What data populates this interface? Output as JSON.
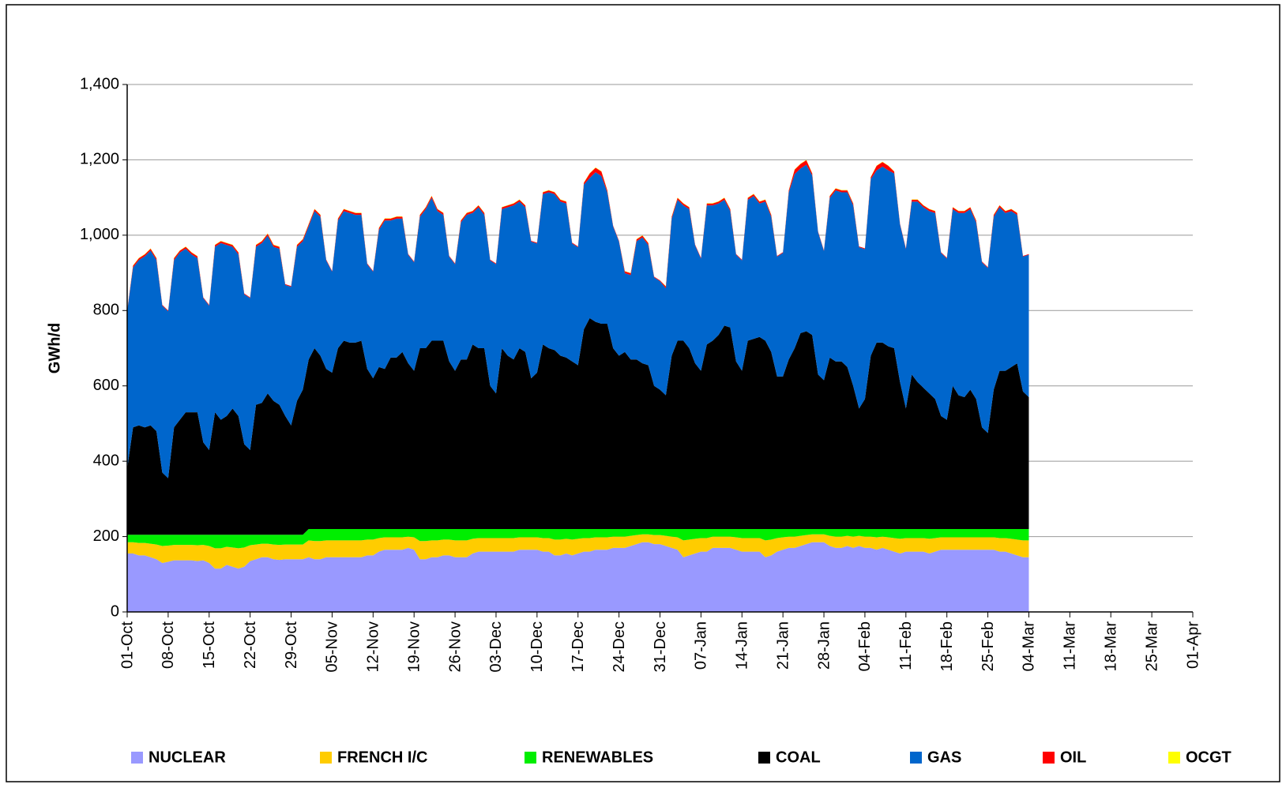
{
  "chart_data": {
    "type": "area",
    "stacked": true,
    "y_label": "GWh/d",
    "grid": true,
    "legend": "bottom",
    "xlim": [
      0,
      182
    ],
    "xticks": [
      {
        "value": 0,
        "label": "01-Oct"
      },
      {
        "value": 7,
        "label": "08-Oct"
      },
      {
        "value": 14,
        "label": "15-Oct"
      },
      {
        "value": 21,
        "label": "22-Oct"
      },
      {
        "value": 28,
        "label": "29-Oct"
      },
      {
        "value": 35,
        "label": "05-Nov"
      },
      {
        "value": 42,
        "label": "12-Nov"
      },
      {
        "value": 49,
        "label": "19-Nov"
      },
      {
        "value": 56,
        "label": "26-Nov"
      },
      {
        "value": 63,
        "label": "03-Dec"
      },
      {
        "value": 70,
        "label": "10-Dec"
      },
      {
        "value": 77,
        "label": "17-Dec"
      },
      {
        "value": 84,
        "label": "24-Dec"
      },
      {
        "value": 91,
        "label": "31-Dec"
      },
      {
        "value": 98,
        "label": "07-Jan"
      },
      {
        "value": 105,
        "label": "14-Jan"
      },
      {
        "value": 112,
        "label": "21-Jan"
      },
      {
        "value": 119,
        "label": "28-Jan"
      },
      {
        "value": 126,
        "label": "04-Feb"
      },
      {
        "value": 133,
        "label": "11-Feb"
      },
      {
        "value": 140,
        "label": "18-Feb"
      },
      {
        "value": 147,
        "label": "25-Feb"
      },
      {
        "value": 154,
        "label": "04-Mar"
      },
      {
        "value": 161,
        "label": "11-Mar"
      },
      {
        "value": 168,
        "label": "18-Mar"
      },
      {
        "value": 175,
        "label": "25-Mar"
      },
      {
        "value": 182,
        "label": "01-Apr"
      }
    ],
    "ylim": [
      0,
      1400
    ],
    "yticks": [
      0,
      200,
      400,
      600,
      800,
      {
        "value": 1000,
        "label": "1,000"
      },
      {
        "value": 1200,
        "label": "1,200"
      },
      {
        "value": 1400,
        "label": "1,400"
      }
    ],
    "x": [
      0,
      1,
      2,
      3,
      4,
      5,
      6,
      7,
      8,
      9,
      10,
      11,
      12,
      13,
      14,
      15,
      16,
      17,
      18,
      19,
      20,
      21,
      22,
      23,
      24,
      25,
      26,
      27,
      28,
      29,
      30,
      31,
      32,
      33,
      34,
      35,
      36,
      37,
      38,
      39,
      40,
      41,
      42,
      43,
      44,
      45,
      46,
      47,
      48,
      49,
      50,
      51,
      52,
      53,
      54,
      55,
      56,
      57,
      58,
      59,
      60,
      61,
      62,
      63,
      64,
      65,
      66,
      67,
      68,
      69,
      70,
      71,
      72,
      73,
      74,
      75,
      76,
      77,
      78,
      79,
      80,
      81,
      82,
      83,
      84,
      85,
      86,
      87,
      88,
      89,
      90,
      91,
      92,
      93,
      94,
      95,
      96,
      97,
      98,
      99,
      100,
      101,
      102,
      103,
      104,
      105,
      106,
      107,
      108,
      109,
      110,
      111,
      112,
      113,
      114,
      115,
      116,
      117,
      118,
      119,
      120,
      121,
      122,
      123,
      124,
      125,
      126,
      127,
      128,
      129,
      130,
      131,
      132,
      133,
      134,
      135,
      136,
      137,
      138,
      139,
      140,
      141,
      142,
      143,
      144,
      145,
      146,
      147,
      148,
      149,
      150,
      151,
      152,
      153,
      154
    ],
    "series": [
      {
        "name": "NUCLEAR",
        "color": "#9999ff",
        "values": [
          155,
          155,
          150,
          150,
          145,
          140,
          130,
          133,
          137,
          137,
          137,
          137,
          135,
          137,
          130,
          115,
          115,
          125,
          120,
          115,
          120,
          135,
          140,
          145,
          145,
          140,
          138,
          140,
          140,
          140,
          140,
          145,
          140,
          140,
          145,
          145,
          145,
          145,
          145,
          145,
          145,
          150,
          150,
          160,
          165,
          165,
          165,
          165,
          170,
          165,
          140,
          140,
          145,
          145,
          150,
          150,
          145,
          145,
          145,
          155,
          160,
          160,
          160,
          160,
          160,
          160,
          160,
          165,
          165,
          165,
          165,
          160,
          160,
          150,
          150,
          155,
          150,
          155,
          160,
          160,
          165,
          165,
          165,
          170,
          170,
          170,
          175,
          180,
          185,
          185,
          180,
          180,
          175,
          170,
          165,
          145,
          150,
          155,
          160,
          160,
          170,
          170,
          170,
          170,
          165,
          160,
          160,
          160,
          160,
          145,
          150,
          160,
          165,
          170,
          170,
          175,
          180,
          185,
          185,
          185,
          175,
          170,
          170,
          175,
          170,
          175,
          170,
          170,
          165,
          170,
          165,
          160,
          155,
          160,
          160,
          160,
          160,
          155,
          160,
          165,
          165,
          165,
          165,
          165,
          165,
          165,
          165,
          165,
          165,
          160,
          160,
          155,
          150,
          145,
          145
        ]
      },
      {
        "name": "FRENCH I/C",
        "color": "#ffcc00",
        "values": [
          30,
          30,
          33,
          33,
          36,
          39,
          45,
          43,
          41,
          41,
          41,
          41,
          42,
          41,
          45,
          54,
          54,
          48,
          51,
          54,
          51,
          42,
          39,
          36,
          36,
          39,
          40,
          39,
          39,
          39,
          39,
          45,
          48,
          48,
          45,
          45,
          45,
          45,
          45,
          45,
          45,
          42,
          42,
          36,
          33,
          33,
          33,
          33,
          30,
          33,
          48,
          48,
          45,
          45,
          42,
          42,
          45,
          45,
          45,
          39,
          36,
          36,
          36,
          36,
          36,
          36,
          36,
          33,
          33,
          33,
          33,
          36,
          36,
          42,
          42,
          39,
          42,
          39,
          36,
          36,
          33,
          33,
          33,
          30,
          30,
          30,
          27,
          24,
          21,
          21,
          24,
          24,
          27,
          30,
          33,
          45,
          42,
          39,
          36,
          36,
          30,
          30,
          30,
          30,
          33,
          36,
          36,
          36,
          36,
          45,
          42,
          36,
          33,
          30,
          30,
          27,
          24,
          21,
          21,
          21,
          27,
          30,
          30,
          27,
          30,
          27,
          30,
          30,
          33,
          30,
          33,
          36,
          39,
          36,
          36,
          36,
          36,
          39,
          36,
          33,
          33,
          33,
          33,
          33,
          33,
          33,
          33,
          33,
          33,
          36,
          36,
          39,
          42,
          45,
          45
        ]
      },
      {
        "name": "RENEWABLES",
        "color": "#00ee00",
        "values": [
          20,
          20,
          22,
          22,
          24,
          26,
          30,
          29,
          27,
          27,
          27,
          27,
          28,
          27,
          30,
          36,
          36,
          32,
          34,
          36,
          34,
          28,
          26,
          24,
          24,
          26,
          27,
          26,
          26,
          26,
          26,
          30,
          32,
          32,
          30,
          30,
          30,
          30,
          30,
          30,
          30,
          28,
          28,
          24,
          22,
          22,
          22,
          22,
          20,
          22,
          32,
          32,
          30,
          30,
          28,
          28,
          30,
          30,
          30,
          26,
          24,
          24,
          24,
          24,
          24,
          24,
          24,
          22,
          22,
          22,
          22,
          24,
          24,
          28,
          28,
          26,
          28,
          26,
          24,
          24,
          22,
          22,
          22,
          20,
          20,
          20,
          18,
          16,
          14,
          14,
          16,
          16,
          18,
          20,
          22,
          30,
          28,
          26,
          24,
          24,
          20,
          20,
          20,
          20,
          22,
          24,
          24,
          24,
          24,
          30,
          28,
          24,
          22,
          20,
          20,
          18,
          16,
          14,
          14,
          14,
          18,
          20,
          20,
          18,
          20,
          18,
          20,
          20,
          22,
          20,
          22,
          24,
          26,
          24,
          24,
          24,
          24,
          26,
          24,
          22,
          22,
          22,
          22,
          22,
          22,
          22,
          22,
          22,
          22,
          24,
          24,
          26,
          28,
          30,
          30
        ]
      },
      {
        "name": "COAL",
        "color": "#000000",
        "values": [
          175,
          285,
          290,
          285,
          290,
          275,
          165,
          150,
          285,
          305,
          325,
          325,
          325,
          245,
          225,
          325,
          305,
          315,
          335,
          315,
          240,
          225,
          345,
          350,
          375,
          355,
          345,
          315,
          290,
          355,
          385,
          450,
          480,
          460,
          425,
          415,
          480,
          500,
          495,
          495,
          500,
          425,
          400,
          430,
          425,
          455,
          455,
          470,
          440,
          420,
          480,
          480,
          500,
          500,
          500,
          445,
          420,
          450,
          450,
          490,
          480,
          480,
          380,
          360,
          480,
          460,
          450,
          480,
          470,
          400,
          415,
          490,
          480,
          475,
          460,
          455,
          445,
          435,
          530,
          560,
          550,
          545,
          545,
          480,
          460,
          470,
          450,
          450,
          440,
          435,
          380,
          370,
          355,
          460,
          500,
          500,
          480,
          440,
          420,
          490,
          500,
          515,
          540,
          535,
          445,
          420,
          500,
          505,
          510,
          500,
          470,
          405,
          405,
          450,
          480,
          520,
          525,
          515,
          410,
          395,
          455,
          445,
          445,
          430,
          380,
          320,
          345,
          460,
          495,
          495,
          485,
          480,
          390,
          320,
          410,
          390,
          375,
          360,
          345,
          300,
          290,
          380,
          355,
          350,
          370,
          345,
          270,
          255,
          370,
          420,
          420,
          430,
          440,
          365,
          350
        ]
      },
      {
        "name": "GAS",
        "color": "#0066cc",
        "values": [
          418,
          424,
          439,
          454,
          464,
          454,
          443,
          443,
          444,
          444,
          434,
          419,
          409,
          383,
          383,
          439,
          469,
          454,
          429,
          429,
          398,
          403,
          419,
          424,
          419,
          409,
          414,
          348,
          368,
          409,
          394,
          354,
          364,
          369,
          288,
          268,
          339,
          344,
          344,
          339,
          334,
          278,
          283,
          364,
          394,
          364,
          369,
          354,
          288,
          288,
          349,
          369,
          379,
          344,
          334,
          278,
          283,
          364,
          384,
          349,
          374,
          354,
          333,
          343,
          369,
          394,
          409,
          389,
          384,
          363,
          343,
          399,
          414,
          414,
          409,
          409,
          313,
          313,
          384,
          372,
          397,
          392,
          349,
          323,
          303,
          209,
          224,
          314,
          334,
          319,
          288,
          288,
          284,
          364,
          374,
          359,
          369,
          313,
          298,
          369,
          359,
          349,
          334,
          309,
          283,
          293,
          374,
          379,
          354,
          369,
          359,
          318,
          328,
          444,
          462,
          437,
          442,
          424,
          378,
          343,
          424,
          454,
          449,
          464,
          479,
          428,
          398,
          469,
          457,
          467,
          467,
          464,
          418,
          423,
          459,
          479,
          479,
          484,
          494,
          433,
          428,
          469,
          484,
          489,
          479,
          469,
          438,
          438,
          459,
          434,
          419,
          414,
          394,
          358,
          378
        ]
      },
      {
        "name": "OIL",
        "color": "#ff0000",
        "values": [
          2,
          5,
          5,
          5,
          5,
          5,
          2,
          2,
          5,
          5,
          5,
          5,
          5,
          2,
          2,
          5,
          5,
          5,
          5,
          5,
          2,
          2,
          5,
          5,
          5,
          5,
          5,
          2,
          2,
          5,
          5,
          5,
          5,
          5,
          2,
          2,
          5,
          5,
          5,
          5,
          5,
          2,
          2,
          5,
          5,
          5,
          5,
          5,
          2,
          2,
          5,
          5,
          5,
          5,
          5,
          2,
          2,
          5,
          5,
          5,
          5,
          5,
          2,
          2,
          5,
          5,
          5,
          5,
          5,
          2,
          2,
          5,
          5,
          5,
          5,
          5,
          2,
          2,
          5,
          12,
          12,
          12,
          5,
          2,
          2,
          5,
          5,
          5,
          5,
          5,
          2,
          2,
          5,
          5,
          5,
          5,
          5,
          2,
          2,
          5,
          5,
          5,
          5,
          5,
          2,
          2,
          5,
          5,
          5,
          5,
          5,
          2,
          2,
          5,
          12,
          12,
          12,
          5,
          2,
          2,
          5,
          5,
          5,
          5,
          5,
          2,
          2,
          5,
          12,
          12,
          12,
          5,
          2,
          2,
          5,
          5,
          5,
          5,
          5,
          2,
          2,
          5,
          5,
          5,
          5,
          5,
          2,
          2,
          5,
          5,
          5,
          5,
          5,
          2,
          2
        ]
      },
      {
        "name": "OCGT",
        "color": "#ffff00",
        "values": [
          0,
          1,
          1,
          1,
          1,
          1,
          0,
          0,
          1,
          1,
          1,
          1,
          1,
          0,
          0,
          1,
          1,
          1,
          1,
          1,
          0,
          0,
          1,
          1,
          1,
          1,
          1,
          0,
          0,
          1,
          1,
          1,
          1,
          1,
          0,
          0,
          1,
          1,
          1,
          1,
          1,
          0,
          0,
          1,
          1,
          1,
          1,
          1,
          0,
          0,
          1,
          1,
          1,
          1,
          1,
          0,
          0,
          1,
          1,
          1,
          1,
          1,
          0,
          0,
          1,
          1,
          1,
          1,
          1,
          0,
          0,
          1,
          1,
          1,
          1,
          1,
          0,
          0,
          1,
          1,
          1,
          1,
          1,
          0,
          0,
          1,
          1,
          1,
          1,
          1,
          0,
          0,
          1,
          1,
          1,
          1,
          1,
          0,
          0,
          1,
          1,
          1,
          1,
          1,
          0,
          0,
          1,
          1,
          1,
          1,
          1,
          0,
          0,
          1,
          1,
          1,
          1,
          1,
          0,
          0,
          1,
          1,
          1,
          1,
          1,
          0,
          0,
          1,
          1,
          1,
          1,
          1,
          0,
          0,
          1,
          1,
          1,
          1,
          1,
          0,
          0,
          1,
          1,
          1,
          1,
          1,
          0,
          0,
          1,
          1,
          1,
          1,
          1,
          0,
          0
        ]
      }
    ]
  }
}
